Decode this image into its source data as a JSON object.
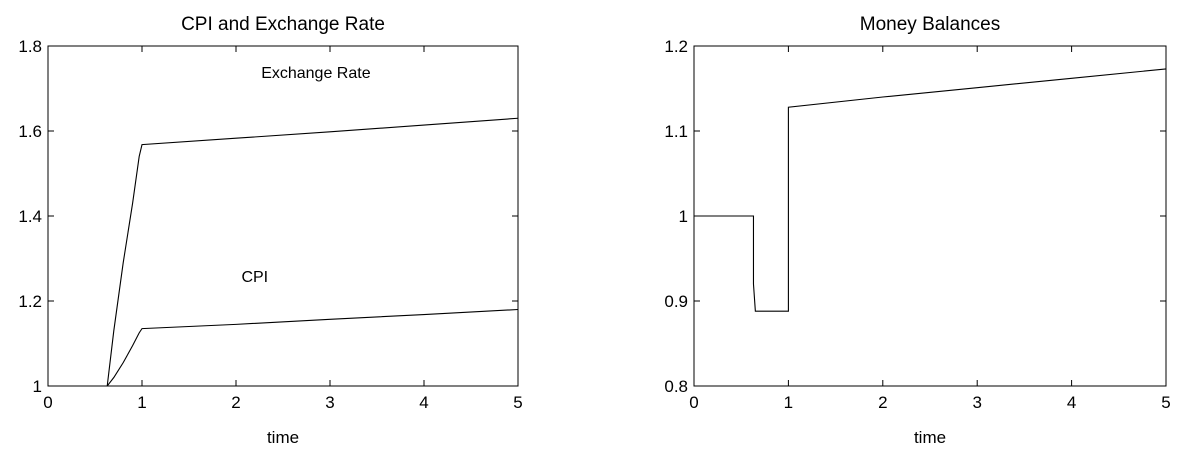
{
  "chart_data": [
    {
      "type": "line",
      "title": "CPI and Exchange Rate",
      "xlabel": "time",
      "ylabel": "",
      "xlim": [
        0,
        5
      ],
      "ylim": [
        1,
        1.8
      ],
      "xticks": [
        "0",
        "1",
        "2",
        "3",
        "4",
        "5"
      ],
      "yticks": [
        "1",
        "1.2",
        "1.4",
        "1.6",
        "1.8"
      ],
      "grid": false,
      "annotations": [
        {
          "text": "Exchange Rate",
          "x": 2.85,
          "y": 1.725
        },
        {
          "text": "CPI",
          "x": 2.2,
          "y": 1.245
        }
      ],
      "series": [
        {
          "name": "Exchange Rate",
          "x": [
            0,
            0.63,
            0.7,
            0.8,
            0.9,
            0.97,
            1.0,
            2,
            3,
            4,
            5
          ],
          "y": [
            1,
            1,
            1.13,
            1.29,
            1.43,
            1.54,
            1.568,
            1.583,
            1.598,
            1.614,
            1.63
          ]
        },
        {
          "name": "CPI",
          "x": [
            0,
            0.63,
            0.7,
            0.8,
            0.9,
            0.97,
            1.0,
            2,
            3,
            4,
            5
          ],
          "y": [
            1,
            1,
            1.02,
            1.055,
            1.095,
            1.125,
            1.135,
            1.145,
            1.157,
            1.168,
            1.18
          ]
        }
      ]
    },
    {
      "type": "line",
      "title": "Money Balances",
      "xlabel": "time",
      "ylabel": "",
      "xlim": [
        0,
        5
      ],
      "ylim": [
        0.8,
        1.2
      ],
      "xticks": [
        "0",
        "1",
        "2",
        "3",
        "4",
        "5"
      ],
      "yticks": [
        "0.8",
        "0.9",
        "1",
        "1.1",
        "1.2"
      ],
      "grid": false,
      "series": [
        {
          "x": [
            0,
            0.63,
            0.63,
            0.65,
            1.0,
            1.0,
            2,
            3,
            4,
            5
          ],
          "y": [
            1,
            1,
            0.92,
            0.888,
            0.888,
            1.128,
            1.14,
            1.151,
            1.162,
            1.173
          ]
        }
      ]
    }
  ]
}
